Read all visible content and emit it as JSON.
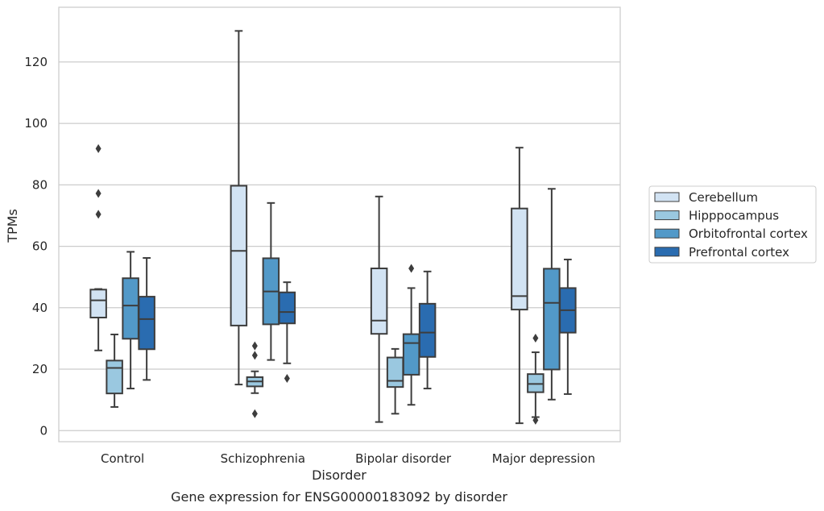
{
  "chart_data": {
    "type": "boxplot",
    "title": "",
    "caption": "Gene expression for ENSG00000183092 by disorder",
    "xlabel": "Disorder",
    "ylabel": "TPMs",
    "ylim": [
      -3.6,
      137.8
    ],
    "yticks": [
      0,
      20,
      40,
      60,
      80,
      100,
      120
    ],
    "grid": true,
    "legend_position": "right",
    "categories": [
      "Control",
      "Schizophrenia",
      "Bipolar disorder",
      "Major depression"
    ],
    "series": [
      {
        "name": "Cerebellum",
        "color": "#d2e3f3",
        "boxes": [
          {
            "whislo": 26.1,
            "q1": 36.8,
            "med": 42.4,
            "q3": 45.9,
            "whishi": 46.1,
            "fliers": [
              70.4,
              77.2,
              91.8
            ]
          },
          {
            "whislo": 15.0,
            "q1": 34.2,
            "med": 58.5,
            "q3": 79.7,
            "whishi": 130.1,
            "fliers": []
          },
          {
            "whislo": 2.8,
            "q1": 31.5,
            "med": 35.8,
            "q3": 52.8,
            "whishi": 76.2,
            "fliers": []
          },
          {
            "whislo": 2.4,
            "q1": 39.4,
            "med": 43.8,
            "q3": 72.3,
            "whishi": 92.1,
            "fliers": []
          }
        ]
      },
      {
        "name": "Hipppocampus",
        "color": "#9ac8e0",
        "boxes": [
          {
            "whislo": 7.7,
            "q1": 12.1,
            "med": 20.4,
            "q3": 22.8,
            "whishi": 31.3,
            "fliers": []
          },
          {
            "whislo": 12.2,
            "q1": 14.4,
            "med": 16.0,
            "q3": 17.4,
            "whishi": 19.3,
            "fliers": [
              24.5,
              27.6,
              5.5
            ]
          },
          {
            "whislo": 5.5,
            "q1": 14.2,
            "med": 16.2,
            "q3": 23.8,
            "whishi": 26.6,
            "fliers": []
          },
          {
            "whislo": 4.4,
            "q1": 12.5,
            "med": 15.2,
            "q3": 18.4,
            "whishi": 25.5,
            "fliers": [
              30.1,
              3.4
            ]
          }
        ]
      },
      {
        "name": "Orbitofrontal cortex",
        "color": "#5299c8",
        "boxes": [
          {
            "whislo": 13.7,
            "q1": 29.9,
            "med": 40.7,
            "q3": 49.6,
            "whishi": 58.2,
            "fliers": []
          },
          {
            "whislo": 23.0,
            "q1": 34.6,
            "med": 45.3,
            "q3": 56.1,
            "whishi": 74.1,
            "fliers": []
          },
          {
            "whislo": 8.4,
            "q1": 18.2,
            "med": 28.5,
            "q3": 31.4,
            "whishi": 46.4,
            "fliers": [
              52.8
            ]
          },
          {
            "whislo": 10.1,
            "q1": 19.9,
            "med": 41.6,
            "q3": 52.7,
            "whishi": 78.7,
            "fliers": []
          }
        ]
      },
      {
        "name": "Prefrontal cortex",
        "color": "#2a6cb0",
        "boxes": [
          {
            "whislo": 16.5,
            "q1": 26.5,
            "med": 36.3,
            "q3": 43.6,
            "whishi": 56.2,
            "fliers": []
          },
          {
            "whislo": 21.9,
            "q1": 34.9,
            "med": 38.6,
            "q3": 45.0,
            "whishi": 48.3,
            "fliers": [
              17.0
            ]
          },
          {
            "whislo": 13.7,
            "q1": 24.0,
            "med": 31.9,
            "q3": 41.3,
            "whishi": 51.8,
            "fliers": []
          },
          {
            "whislo": 11.9,
            "q1": 31.9,
            "med": 39.2,
            "q3": 46.4,
            "whishi": 55.7,
            "fliers": []
          }
        ]
      }
    ]
  }
}
